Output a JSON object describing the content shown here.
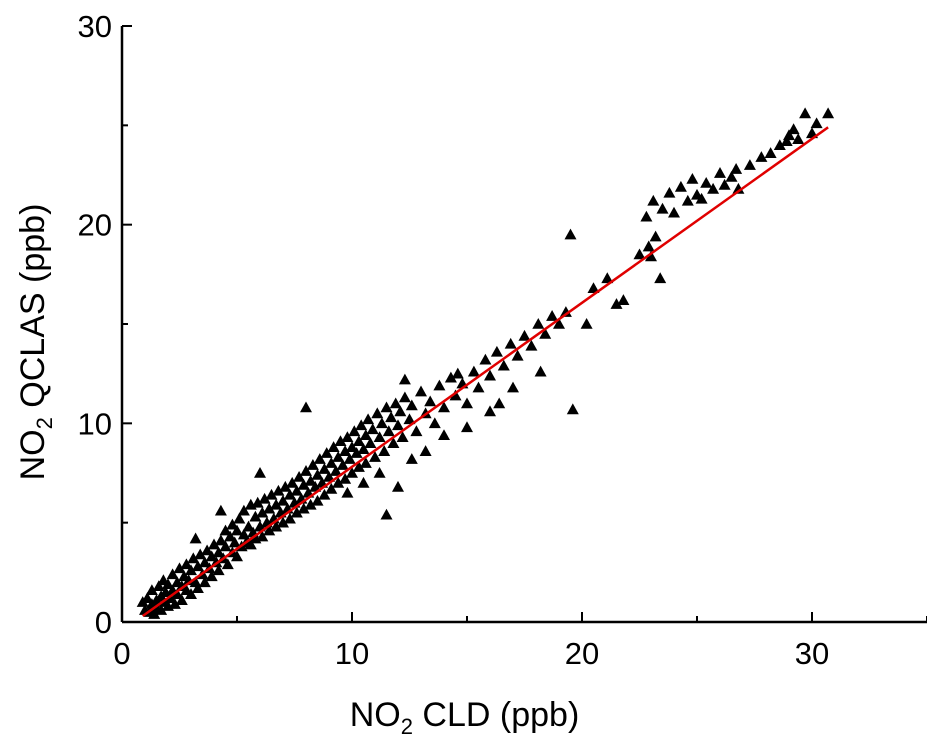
{
  "chart_data": {
    "type": "scatter",
    "xlabel_main": "NO",
    "xlabel_sub": "2",
    "xlabel_rest": " CLD (ppb)",
    "ylabel_main": "NO",
    "ylabel_sub": "2",
    "ylabel_rest": " QCLAS (ppb)",
    "xlim": [
      0,
      35
    ],
    "ylim": [
      0,
      30
    ],
    "x_ticks": [
      0,
      10,
      20,
      30
    ],
    "y_ticks": [
      0,
      10,
      20,
      30
    ],
    "x_tick_labels": [
      "0",
      "10",
      "20",
      "30"
    ],
    "y_tick_labels": [
      "0",
      "10",
      "20",
      "30"
    ],
    "grid": false,
    "marker": "filled-triangle",
    "marker_color": "#000000",
    "fit_line": {
      "x": [
        0.9,
        30.7
      ],
      "y": [
        0.3,
        24.9
      ],
      "color": "#e00000"
    },
    "series": [
      {
        "points": [
          [
            0.9,
            1.0
          ],
          [
            1.0,
            0.6
          ],
          [
            1.1,
            1.2
          ],
          [
            1.2,
            0.5
          ],
          [
            1.3,
            0.9
          ],
          [
            1.3,
            1.6
          ],
          [
            1.4,
            0.4
          ],
          [
            1.5,
            1.1
          ],
          [
            1.5,
            0.7
          ],
          [
            1.6,
            1.8
          ],
          [
            1.7,
            1.3
          ],
          [
            1.7,
            0.6
          ],
          [
            1.8,
            1.0
          ],
          [
            1.8,
            2.1
          ],
          [
            1.9,
            1.5
          ],
          [
            2.0,
            0.8
          ],
          [
            2.0,
            1.9
          ],
          [
            2.1,
            1.2
          ],
          [
            2.2,
            2.4
          ],
          [
            2.2,
            1.6
          ],
          [
            2.3,
            0.9
          ],
          [
            2.4,
            2.0
          ],
          [
            2.4,
            1.4
          ],
          [
            2.5,
            2.7
          ],
          [
            2.6,
            1.8
          ],
          [
            2.6,
            1.1
          ],
          [
            2.7,
            2.3
          ],
          [
            2.8,
            1.6
          ],
          [
            2.8,
            2.9
          ],
          [
            2.9,
            2.1
          ],
          [
            3.0,
            1.4
          ],
          [
            3.0,
            2.6
          ],
          [
            3.1,
            3.2
          ],
          [
            3.2,
            2.0
          ],
          [
            3.3,
            2.8
          ],
          [
            3.3,
            1.7
          ],
          [
            3.4,
            3.4
          ],
          [
            3.5,
            2.4
          ],
          [
            3.6,
            3.0
          ],
          [
            3.6,
            2.0
          ],
          [
            3.7,
            3.6
          ],
          [
            3.8,
            2.7
          ],
          [
            3.9,
            3.3
          ],
          [
            3.9,
            2.3
          ],
          [
            4.0,
            3.9
          ],
          [
            4.1,
            3.0
          ],
          [
            4.2,
            3.5
          ],
          [
            4.2,
            2.6
          ],
          [
            4.3,
            4.1
          ],
          [
            4.4,
            3.2
          ],
          [
            4.5,
            3.8
          ],
          [
            4.5,
            4.6
          ],
          [
            4.6,
            2.9
          ],
          [
            4.7,
            4.3
          ],
          [
            4.8,
            3.5
          ],
          [
            4.8,
            4.9
          ],
          [
            4.9,
            4.0
          ],
          [
            5.0,
            3.3
          ],
          [
            5.0,
            4.6
          ],
          [
            5.1,
            5.2
          ],
          [
            5.2,
            3.8
          ],
          [
            5.3,
            4.4
          ],
          [
            5.3,
            5.6
          ],
          [
            5.4,
            4.0
          ],
          [
            5.5,
            4.8
          ],
          [
            5.6,
            5.9
          ],
          [
            5.6,
            3.9
          ],
          [
            5.7,
            4.5
          ],
          [
            5.8,
            5.3
          ],
          [
            5.8,
            4.2
          ],
          [
            5.9,
            6.0
          ],
          [
            6.0,
            4.8
          ],
          [
            6.1,
            5.5
          ],
          [
            6.1,
            4.3
          ],
          [
            6.2,
            6.2
          ],
          [
            6.3,
            5.0
          ],
          [
            6.4,
            5.7
          ],
          [
            6.4,
            4.6
          ],
          [
            6.5,
            6.4
          ],
          [
            6.6,
            5.2
          ],
          [
            6.7,
            5.9
          ],
          [
            6.7,
            4.8
          ],
          [
            6.8,
            6.6
          ],
          [
            6.9,
            5.5
          ],
          [
            7.0,
            6.1
          ],
          [
            7.0,
            5.0
          ],
          [
            7.1,
            6.8
          ],
          [
            7.2,
            5.7
          ],
          [
            7.3,
            6.4
          ],
          [
            7.3,
            5.2
          ],
          [
            7.4,
            7.0
          ],
          [
            7.5,
            6.0
          ],
          [
            7.6,
            6.6
          ],
          [
            7.6,
            5.5
          ],
          [
            7.7,
            7.3
          ],
          [
            7.8,
            6.2
          ],
          [
            7.9,
            6.9
          ],
          [
            7.9,
            5.7
          ],
          [
            8.0,
            7.6
          ],
          [
            8.1,
            6.5
          ],
          [
            8.2,
            7.1
          ],
          [
            8.2,
            5.9
          ],
          [
            8.3,
            7.9
          ],
          [
            8.4,
            6.8
          ],
          [
            8.5,
            7.4
          ],
          [
            8.5,
            6.1
          ],
          [
            8.6,
            8.2
          ],
          [
            8.7,
            7.0
          ],
          [
            8.8,
            7.7
          ],
          [
            8.8,
            6.4
          ],
          [
            8.9,
            8.5
          ],
          [
            9.0,
            7.3
          ],
          [
            9.1,
            8.0
          ],
          [
            9.1,
            6.7
          ],
          [
            9.2,
            8.8
          ],
          [
            9.3,
            7.6
          ],
          [
            9.4,
            8.3
          ],
          [
            9.4,
            7.0
          ],
          [
            9.5,
            9.1
          ],
          [
            9.6,
            7.9
          ],
          [
            9.7,
            8.6
          ],
          [
            9.7,
            7.2
          ],
          [
            9.8,
            9.3
          ],
          [
            9.9,
            8.2
          ],
          [
            10.0,
            8.8
          ],
          [
            10.0,
            7.5
          ],
          [
            10.1,
            9.6
          ],
          [
            10.2,
            8.5
          ],
          [
            10.3,
            9.1
          ],
          [
            10.3,
            7.8
          ],
          [
            10.4,
            9.9
          ],
          [
            10.5,
            8.7
          ],
          [
            10.6,
            9.4
          ],
          [
            10.6,
            8.0
          ],
          [
            10.7,
            10.2
          ],
          [
            10.8,
            9.0
          ],
          [
            10.9,
            9.7
          ],
          [
            11.0,
            8.3
          ],
          [
            11.1,
            10.5
          ],
          [
            11.2,
            9.3
          ],
          [
            11.3,
            10.0
          ],
          [
            11.4,
            8.6
          ],
          [
            11.5,
            10.8
          ],
          [
            11.6,
            9.6
          ],
          [
            11.7,
            10.3
          ],
          [
            11.8,
            9.0
          ],
          [
            11.9,
            11.0
          ],
          [
            12.0,
            9.9
          ],
          [
            12.1,
            10.6
          ],
          [
            12.2,
            9.3
          ],
          [
            12.3,
            11.3
          ],
          [
            12.5,
            10.2
          ],
          [
            12.6,
            10.9
          ],
          [
            12.8,
            9.6
          ],
          [
            13.0,
            11.6
          ],
          [
            13.2,
            10.5
          ],
          [
            13.4,
            11.1
          ],
          [
            13.6,
            10.0
          ],
          [
            13.8,
            11.9
          ],
          [
            14.0,
            10.8
          ],
          [
            14.3,
            12.3
          ],
          [
            14.5,
            11.4
          ],
          [
            14.8,
            12.0
          ],
          [
            15.0,
            11.0
          ],
          [
            15.3,
            12.6
          ],
          [
            15.5,
            11.8
          ],
          [
            15.8,
            13.2
          ],
          [
            16.0,
            12.4
          ],
          [
            16.3,
            13.6
          ],
          [
            16.6,
            12.9
          ],
          [
            16.9,
            14.0
          ],
          [
            17.2,
            13.4
          ],
          [
            17.5,
            14.4
          ],
          [
            17.8,
            13.9
          ],
          [
            18.1,
            15.0
          ],
          [
            18.4,
            14.5
          ],
          [
            18.7,
            15.4
          ],
          [
            19.0,
            15.0
          ],
          [
            19.3,
            15.6
          ],
          [
            9.8,
            6.5
          ],
          [
            10.5,
            7.0
          ],
          [
            11.2,
            7.5
          ],
          [
            12.0,
            6.8
          ],
          [
            12.6,
            8.2
          ],
          [
            13.2,
            8.6
          ],
          [
            14.0,
            9.4
          ],
          [
            15.0,
            9.8
          ],
          [
            16.0,
            10.6
          ],
          [
            16.4,
            11.0
          ],
          [
            11.5,
            5.4
          ],
          [
            12.3,
            12.2
          ],
          [
            8.0,
            10.8
          ],
          [
            6.0,
            7.5
          ],
          [
            4.3,
            5.6
          ],
          [
            3.2,
            4.2
          ],
          [
            14.6,
            12.5
          ],
          [
            17.0,
            11.8
          ],
          [
            18.2,
            12.6
          ],
          [
            19.6,
            10.7
          ],
          [
            19.5,
            19.5
          ],
          [
            20.5,
            16.8
          ],
          [
            21.1,
            17.3
          ],
          [
            21.5,
            16.0
          ],
          [
            21.8,
            16.2
          ],
          [
            22.5,
            18.5
          ],
          [
            22.8,
            20.4
          ],
          [
            23.0,
            18.4
          ],
          [
            23.2,
            19.4
          ],
          [
            23.4,
            17.3
          ],
          [
            23.1,
            21.2
          ],
          [
            23.5,
            20.8
          ],
          [
            23.8,
            21.6
          ],
          [
            24.0,
            20.6
          ],
          [
            24.3,
            21.9
          ],
          [
            24.6,
            21.2
          ],
          [
            25.0,
            21.5
          ],
          [
            25.4,
            22.1
          ],
          [
            25.7,
            21.8
          ],
          [
            26.0,
            22.6
          ],
          [
            26.2,
            22.0
          ],
          [
            26.5,
            22.4
          ],
          [
            26.8,
            21.8
          ],
          [
            27.3,
            23.0
          ],
          [
            27.8,
            23.4
          ],
          [
            28.2,
            23.6
          ],
          [
            28.6,
            24.0
          ],
          [
            29.0,
            24.5
          ],
          [
            29.4,
            24.3
          ],
          [
            29.7,
            25.6
          ],
          [
            30.0,
            24.6
          ],
          [
            30.2,
            25.1
          ],
          [
            29.2,
            24.8
          ],
          [
            28.9,
            24.2
          ],
          [
            30.7,
            25.6
          ],
          [
            24.8,
            22.3
          ],
          [
            25.2,
            21.3
          ],
          [
            26.7,
            22.8
          ],
          [
            22.9,
            18.9
          ],
          [
            20.2,
            15.0
          ]
        ]
      }
    ]
  }
}
